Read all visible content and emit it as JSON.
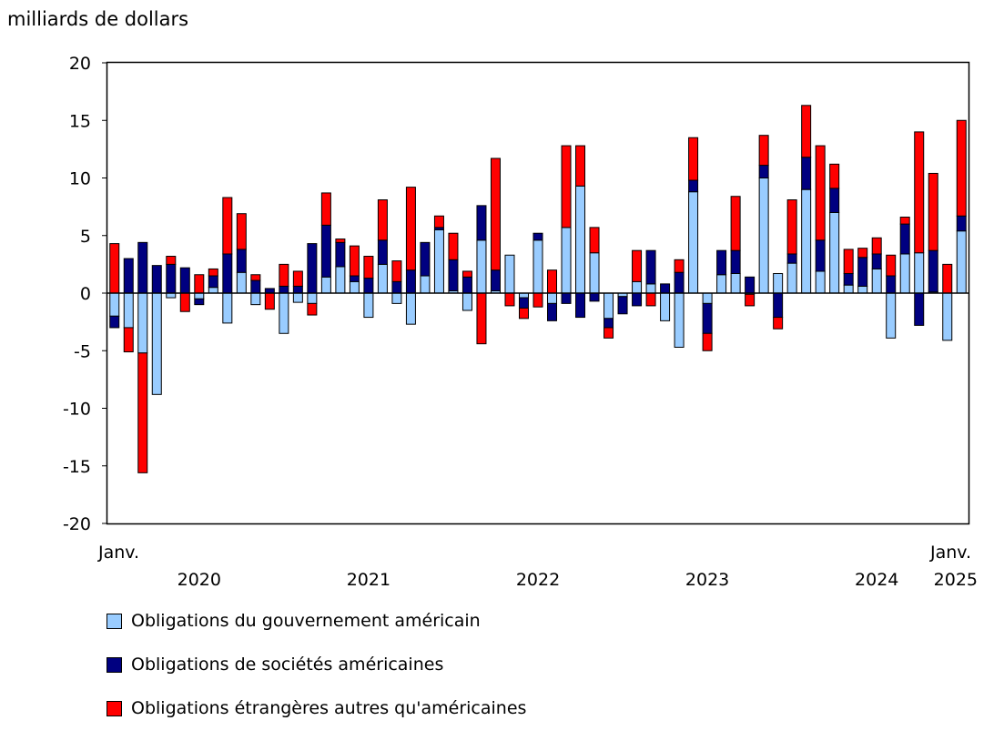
{
  "chart_data": {
    "type": "bar",
    "stacked": true,
    "ylabel": "milliards de dollars",
    "ylim": [
      -20,
      20
    ],
    "yticks": [
      20,
      15,
      10,
      5,
      0,
      -5,
      -10,
      -15,
      -20
    ],
    "x_start_label": "Janv.",
    "x_end_label": "Janv.",
    "x_year_labels": [
      {
        "label": "2020",
        "month_index": 6
      },
      {
        "label": "2021",
        "month_index": 18
      },
      {
        "label": "2022",
        "month_index": 30
      },
      {
        "label": "2023",
        "month_index": 42
      },
      {
        "label": "2024",
        "month_index": 54
      },
      {
        "label": "2025",
        "month_index": 60
      }
    ],
    "colors": {
      "government": "#99ccff",
      "corporate": "#000080",
      "foreign": "#ff0000"
    },
    "legend": [
      {
        "label": "Obligations du gouvernement américain",
        "color": "#99ccff"
      },
      {
        "label": "Obligations de sociétés américaines",
        "color": "#000080"
      },
      {
        "label": "Obligations étrangères autres qu'américaines",
        "color": "#ff0000"
      }
    ],
    "series": [
      {
        "name": "Obligations du gouvernement américain",
        "values": [
          -2.0,
          -3.0,
          -5.2,
          -8.8,
          -0.4,
          0.0,
          -0.5,
          0.5,
          -2.6,
          1.8,
          -1.0,
          0.0,
          -3.5,
          -0.8,
          -0.9,
          1.4,
          2.3,
          1.0,
          -2.1,
          2.5,
          -0.9,
          -2.7,
          1.5,
          5.5,
          0.2,
          -1.5,
          4.6,
          0.2,
          3.3,
          -0.4,
          4.6,
          -0.9,
          5.7,
          9.3,
          3.5,
          -2.2,
          -0.3,
          1.0,
          0.8,
          -2.4,
          -4.7,
          8.8,
          -0.9,
          1.6,
          1.7,
          -0.1,
          10.0,
          1.7,
          2.6,
          9.0,
          1.9,
          7.0,
          0.7,
          0.6,
          2.1,
          -3.9,
          3.4,
          3.5,
          0.1,
          -4.1,
          5.4
        ]
      },
      {
        "name": "Obligations de sociétés américaines",
        "values": [
          -1.0,
          3.0,
          4.4,
          2.4,
          2.5,
          2.2,
          -0.5,
          1.0,
          3.4,
          2.0,
          1.1,
          0.4,
          0.6,
          0.6,
          4.3,
          4.5,
          2.1,
          0.5,
          1.3,
          2.1,
          1.0,
          2.0,
          2.9,
          0.2,
          2.7,
          1.4,
          3.0,
          1.8,
          0.0,
          -0.9,
          0.6,
          -1.5,
          -0.9,
          -2.1,
          -0.7,
          -0.8,
          -1.5,
          -1.1,
          2.9,
          0.8,
          1.8,
          1.0,
          -2.6,
          2.1,
          2.0,
          1.4,
          1.1,
          -2.1,
          0.8,
          2.8,
          2.7,
          2.1,
          1.0,
          2.5,
          1.3,
          1.5,
          2.6,
          -2.8,
          3.6,
          0.0,
          1.3
        ]
      },
      {
        "name": "Obligations étrangères autres qu'américaines",
        "values": [
          4.3,
          -2.1,
          -10.4,
          0.0,
          0.7,
          -1.6,
          1.6,
          0.6,
          4.9,
          3.1,
          0.5,
          -1.4,
          1.9,
          1.3,
          -1.0,
          2.8,
          0.3,
          2.6,
          1.9,
          3.5,
          1.8,
          7.2,
          0.0,
          1.0,
          2.3,
          0.5,
          -4.4,
          9.7,
          -1.1,
          -0.9,
          -1.2,
          2.0,
          7.1,
          3.5,
          2.2,
          -0.9,
          0.0,
          2.7,
          -1.1,
          0.0,
          1.1,
          3.7,
          -1.5,
          0.0,
          4.7,
          -1.0,
          2.6,
          -1.0,
          4.7,
          4.5,
          8.2,
          2.1,
          2.1,
          0.8,
          1.4,
          1.8,
          0.6,
          10.5,
          6.7,
          2.5,
          8.3
        ]
      }
    ]
  }
}
